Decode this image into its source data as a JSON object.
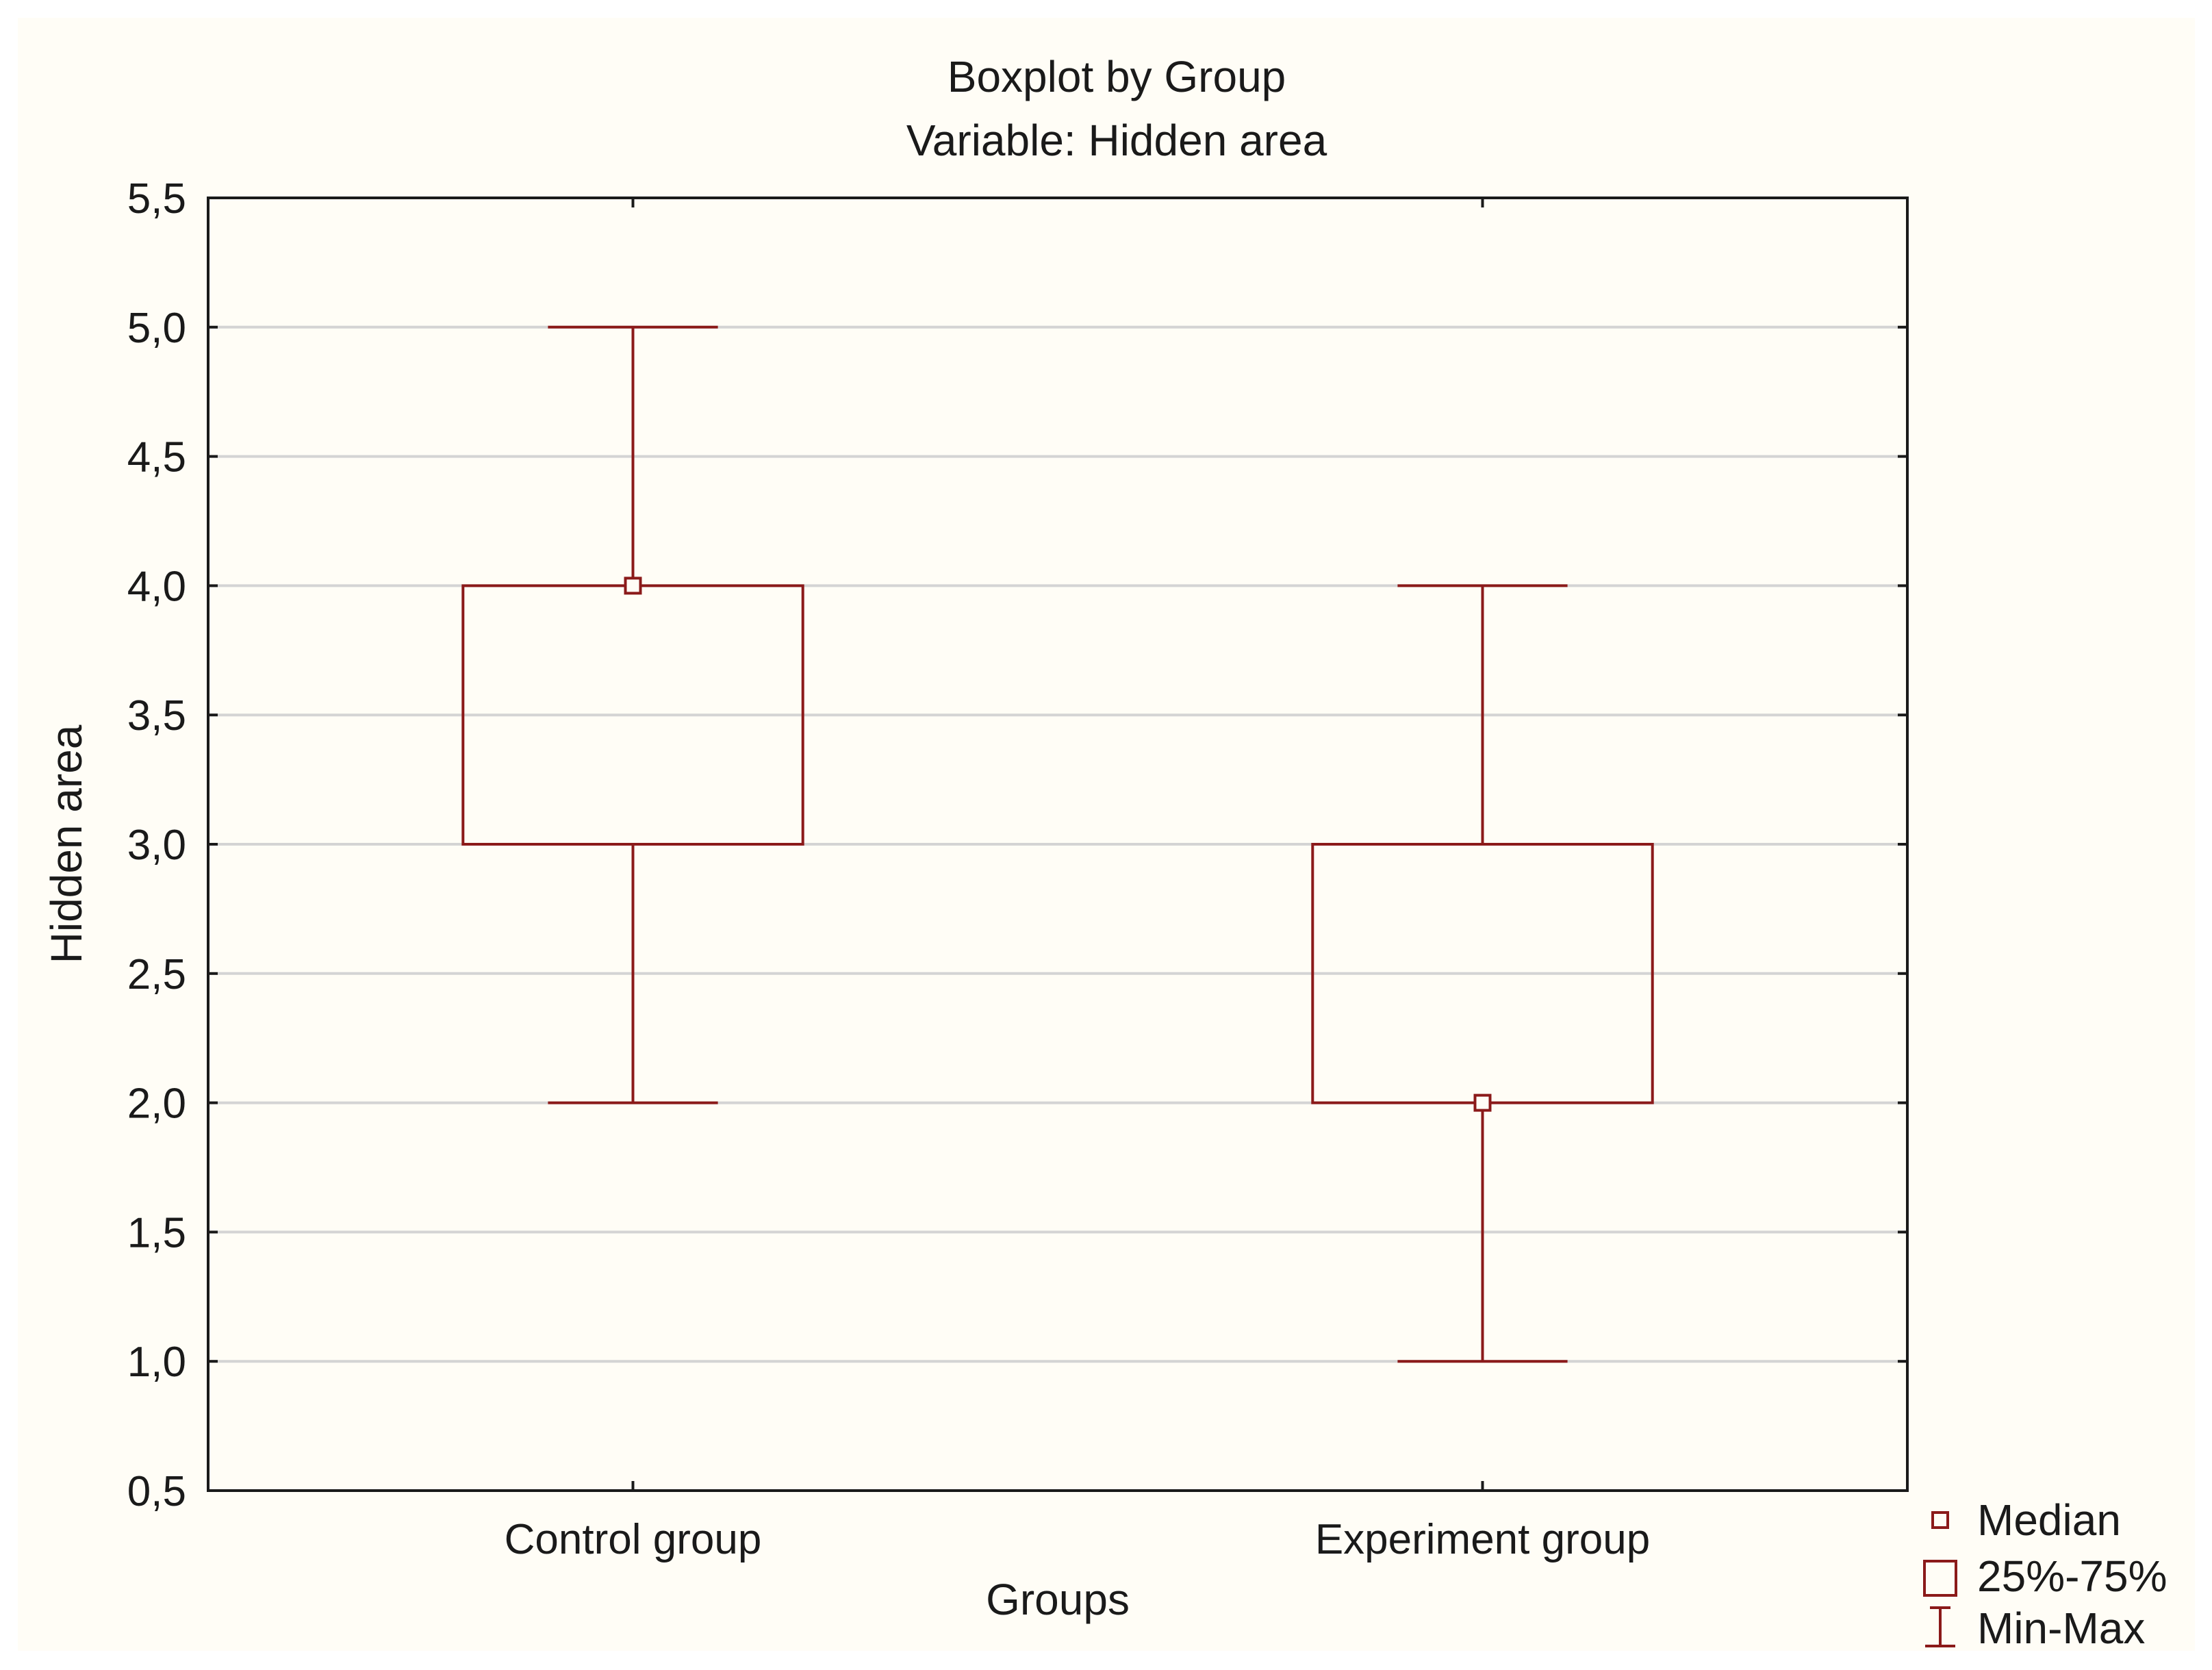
{
  "chart_data": {
    "type": "boxplot",
    "title": "Boxplot by Group",
    "subtitle": "Variable: Hidden area",
    "xlabel": "Groups",
    "ylabel": "Hidden area",
    "ylim": [
      0.5,
      5.5
    ],
    "yticks": [
      0.5,
      1.0,
      1.5,
      2.0,
      2.5,
      3.0,
      3.5,
      4.0,
      4.5,
      5.0,
      5.5
    ],
    "ytick_labels": [
      "0,5",
      "1,0",
      "1,5",
      "2,0",
      "2,5",
      "3,0",
      "3,5",
      "4,0",
      "4,5",
      "5,0",
      "5,5"
    ],
    "grid": "horizontal",
    "categories": [
      "Control group",
      "Experiment group"
    ],
    "boxes": [
      {
        "category": "Control group",
        "min": 2.0,
        "q1": 3.0,
        "median": 4.0,
        "q3": 4.0,
        "max": 5.0
      },
      {
        "category": "Experiment group",
        "min": 1.0,
        "q1": 2.0,
        "median": 2.0,
        "q3": 3.0,
        "max": 4.0
      }
    ],
    "legend": {
      "placement": "bottom-right",
      "entries": [
        {
          "symbol": "median-marker",
          "label": "Median"
        },
        {
          "symbol": "box",
          "label": "25%-75%"
        },
        {
          "symbol": "whisker",
          "label": "Min-Max"
        }
      ]
    },
    "colors": {
      "series": "#8b1a1a",
      "grid": "#d4d4d4",
      "axis": "#1a1a1a",
      "background": "#fffdf6"
    }
  }
}
